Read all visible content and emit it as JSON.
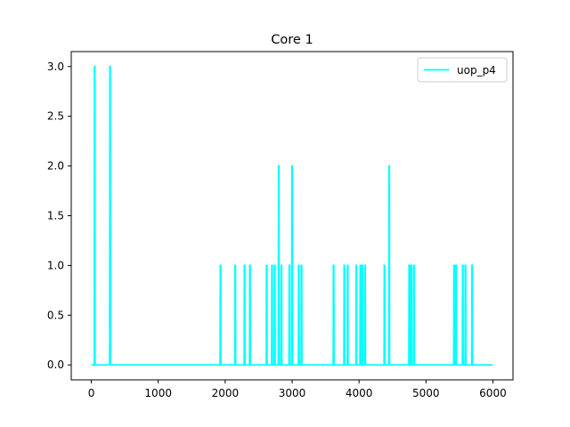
{
  "chart_data": {
    "type": "line",
    "title": "Core 1",
    "xlabel": "",
    "ylabel": "",
    "xlim": [
      -300,
      6300
    ],
    "ylim": [
      -0.15,
      3.15
    ],
    "xticks": [
      0,
      1000,
      2000,
      3000,
      4000,
      5000,
      6000
    ],
    "yticks": [
      0.0,
      0.5,
      1.0,
      1.5,
      2.0,
      2.5,
      3.0
    ],
    "ytick_labels": [
      "0.0",
      "0.5",
      "1.0",
      "1.5",
      "2.0",
      "2.5",
      "3.0"
    ],
    "grid": false,
    "legend_position": "top-right",
    "series": [
      {
        "name": "uop_p4",
        "color": "#00ffff",
        "x_range": [
          0,
          6000
        ],
        "baseline": 0,
        "spikes": [
          {
            "x": 50,
            "y": 3
          },
          {
            "x": 280,
            "y": 3
          },
          {
            "x": 1930,
            "y": 1
          },
          {
            "x": 2150,
            "y": 1
          },
          {
            "x": 2290,
            "y": 1
          },
          {
            "x": 2370,
            "y": 1
          },
          {
            "x": 2620,
            "y": 1
          },
          {
            "x": 2700,
            "y": 1
          },
          {
            "x": 2740,
            "y": 1
          },
          {
            "x": 2800,
            "y": 2
          },
          {
            "x": 2840,
            "y": 1
          },
          {
            "x": 2960,
            "y": 1
          },
          {
            "x": 3000,
            "y": 2
          },
          {
            "x": 3100,
            "y": 1
          },
          {
            "x": 3140,
            "y": 1
          },
          {
            "x": 3620,
            "y": 1
          },
          {
            "x": 3780,
            "y": 1
          },
          {
            "x": 3830,
            "y": 1
          },
          {
            "x": 3960,
            "y": 1
          },
          {
            "x": 4020,
            "y": 1
          },
          {
            "x": 4050,
            "y": 1
          },
          {
            "x": 4090,
            "y": 1
          },
          {
            "x": 4380,
            "y": 1
          },
          {
            "x": 4450,
            "y": 2
          },
          {
            "x": 4750,
            "y": 1
          },
          {
            "x": 4780,
            "y": 1
          },
          {
            "x": 4820,
            "y": 1
          },
          {
            "x": 5420,
            "y": 1
          },
          {
            "x": 5450,
            "y": 1
          },
          {
            "x": 5550,
            "y": 1
          },
          {
            "x": 5590,
            "y": 1
          },
          {
            "x": 5690,
            "y": 1
          }
        ]
      }
    ]
  }
}
